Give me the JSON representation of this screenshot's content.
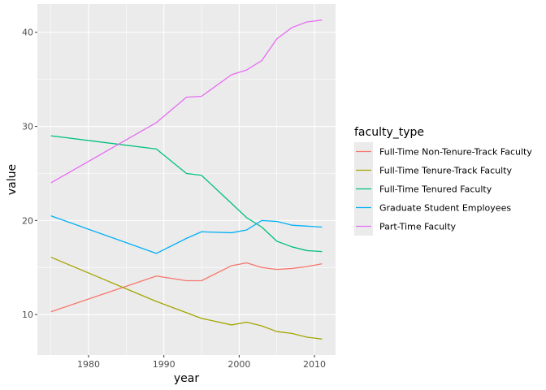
{
  "chart_data": {
    "type": "line",
    "xlabel": "year",
    "ylabel": "value",
    "xlim": [
      1973.2,
      2012.8
    ],
    "ylim": [
      5.7,
      43.0
    ],
    "x_ticks": [
      1980,
      1990,
      2000,
      2010
    ],
    "y_ticks": [
      10,
      20,
      30,
      40
    ],
    "grid": true,
    "legend_title": "faculty_type",
    "legend_position": "right",
    "x": [
      1975,
      1989,
      1993,
      1995,
      1999,
      2001,
      2003,
      2005,
      2007,
      2009,
      2011
    ],
    "series": [
      {
        "name": "Full-Time Non-Tenure-Track Faculty",
        "color": "#F8766D",
        "values": [
          10.3,
          14.1,
          13.6,
          13.6,
          15.2,
          15.5,
          15.0,
          14.8,
          14.9,
          15.1,
          15.4
        ]
      },
      {
        "name": "Full-Time Tenure-Track Faculty",
        "color": "#A3A500",
        "values": [
          16.1,
          11.4,
          10.2,
          9.6,
          8.9,
          9.2,
          8.8,
          8.2,
          8.0,
          7.6,
          7.4
        ]
      },
      {
        "name": "Full-Time Tenured Faculty",
        "color": "#00BF7D",
        "values": [
          29.0,
          27.6,
          25.0,
          24.8,
          21.8,
          20.3,
          19.3,
          17.8,
          17.2,
          16.8,
          16.7
        ]
      },
      {
        "name": "Graduate Student Employees",
        "color": "#00B0F6",
        "values": [
          20.5,
          16.5,
          18.1,
          18.8,
          18.7,
          19.0,
          20.0,
          19.9,
          19.5,
          19.4,
          19.3
        ]
      },
      {
        "name": "Part-Time Faculty",
        "color": "#E76BF3",
        "values": [
          24.0,
          30.4,
          33.1,
          33.2,
          35.5,
          36.0,
          37.0,
          39.3,
          40.5,
          41.1,
          41.3
        ]
      }
    ]
  }
}
